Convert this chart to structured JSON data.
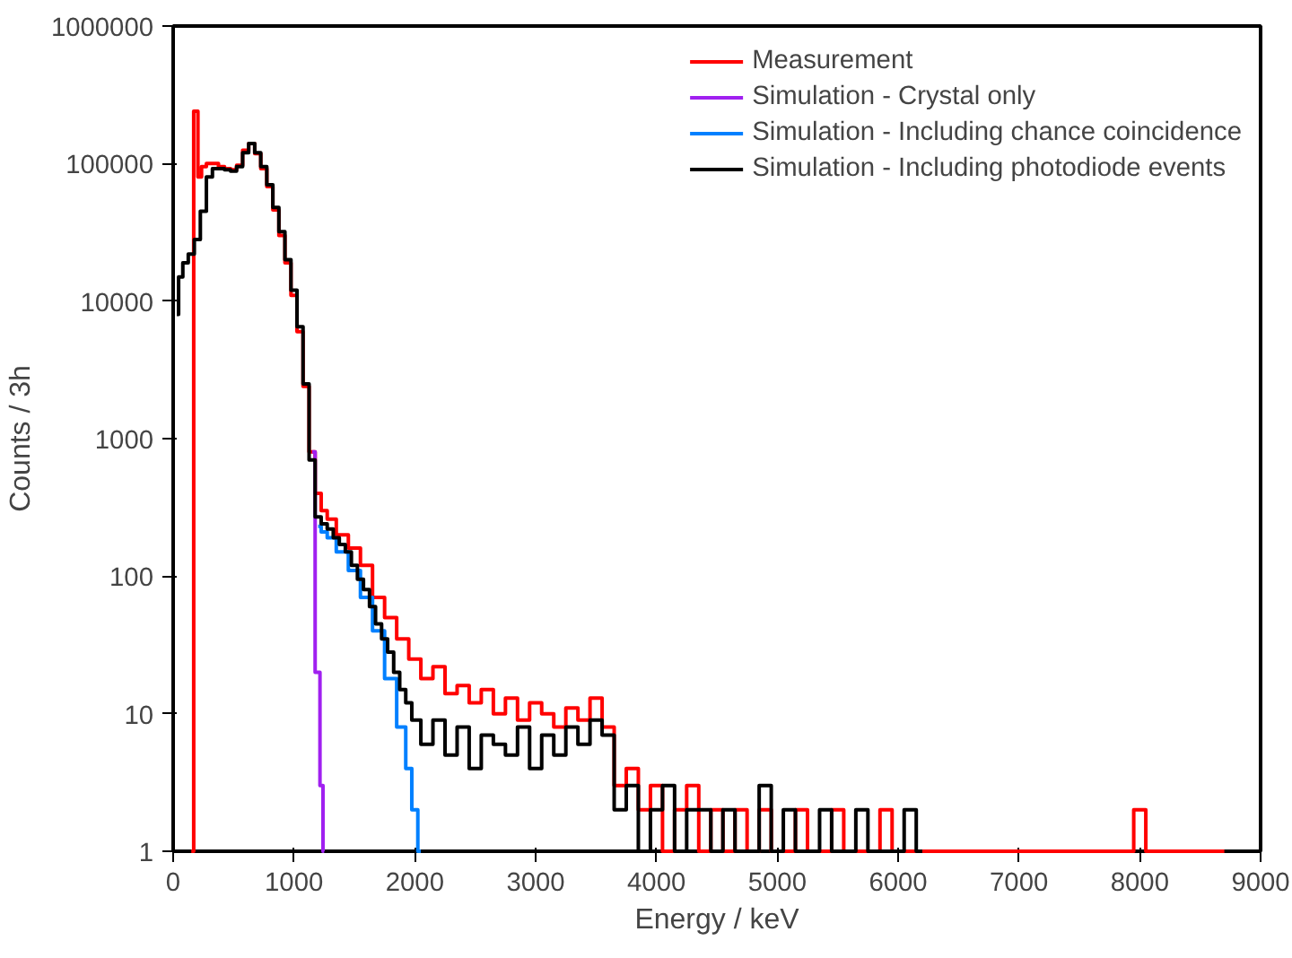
{
  "chart_data": {
    "type": "step",
    "xlabel": "Energy / keV",
    "ylabel": "Counts / 3h",
    "log": "y",
    "grid": false,
    "legend": "top right",
    "xlim": [
      0,
      9000
    ],
    "xticks": [
      0,
      1000,
      2000,
      3000,
      4000,
      5000,
      6000,
      7000,
      8000,
      9000
    ],
    "ylim": [
      1,
      1000000
    ],
    "yticks": [
      1,
      10,
      100,
      1000,
      10000,
      100000,
      1000000
    ],
    "series": [
      {
        "name": "Measurement",
        "color": "#ff0000",
        "x": [
          150,
          190,
          220,
          250,
          300,
          350,
          400,
          450,
          500,
          550,
          600,
          650,
          700,
          750,
          800,
          850,
          900,
          950,
          1000,
          1050,
          1100,
          1150,
          1200,
          1250,
          1300,
          1400,
          1500,
          1600,
          1700,
          1800,
          1900,
          2000,
          2100,
          2200,
          2300,
          2400,
          2500,
          2600,
          2700,
          2800,
          2900,
          3000,
          3100,
          3200,
          3300,
          3400,
          3500,
          3600,
          3700,
          3800,
          3900,
          4000,
          4100,
          4200,
          4300,
          4400,
          4500,
          4600,
          4700,
          4800,
          4900,
          5000,
          5100,
          5200,
          5300,
          5400,
          5500,
          5600,
          5700,
          5800,
          5900,
          6000,
          6100,
          6200,
          6300,
          6400,
          6500,
          6600,
          6700,
          6800,
          6900,
          7000,
          7100,
          7200,
          7300,
          7400,
          7500,
          7600,
          7700,
          7800,
          7900,
          8000,
          8100,
          8200,
          8300,
          8400,
          8500,
          8600,
          8700
        ],
        "values": [
          1,
          240000,
          80000,
          95000,
          100000,
          100000,
          95000,
          92000,
          90000,
          97000,
          125000,
          140000,
          118000,
          92000,
          68000,
          46000,
          30000,
          19000,
          11000,
          6000,
          2400,
          800,
          400,
          300,
          260,
          200,
          160,
          120,
          70,
          50,
          35,
          25,
          18,
          22,
          14,
          16,
          12,
          15,
          10,
          13,
          9,
          12,
          10,
          8,
          11,
          9,
          13,
          8,
          3,
          4,
          2,
          3,
          1,
          2,
          3,
          1,
          2,
          1,
          2,
          1,
          2,
          1,
          1,
          2,
          1,
          1,
          2,
          1,
          1,
          1,
          2,
          1,
          1,
          1,
          1,
          1,
          1,
          1,
          1,
          1,
          1,
          1,
          1,
          1,
          1,
          1,
          1,
          1,
          1,
          1,
          1,
          2,
          1,
          1,
          1,
          1,
          1,
          1,
          1
        ]
      },
      {
        "name": "Simulation - Crystal only",
        "color": "#a020f0",
        "x": [
          1150,
          1200,
          1230,
          1250
        ],
        "values": [
          800,
          20,
          3,
          1
        ]
      },
      {
        "name": "Simulation - Including chance coincidence",
        "color": "#0080ff",
        "x": [
          1200,
          1250,
          1300,
          1400,
          1500,
          1600,
          1700,
          1800,
          1900,
          1950,
          2000,
          2050
        ],
        "values": [
          230,
          210,
          190,
          150,
          110,
          70,
          40,
          18,
          8,
          4,
          2,
          1
        ]
      },
      {
        "name": "Simulation - Including photodiode events",
        "color": "#000000",
        "x": [
          30,
          60,
          100,
          150,
          200,
          250,
          300,
          350,
          400,
          450,
          500,
          550,
          600,
          650,
          700,
          750,
          800,
          850,
          900,
          950,
          1000,
          1050,
          1100,
          1150,
          1200,
          1250,
          1300,
          1350,
          1400,
          1450,
          1500,
          1550,
          1600,
          1650,
          1700,
          1750,
          1800,
          1850,
          1900,
          1950,
          2000,
          2100,
          2200,
          2300,
          2400,
          2500,
          2600,
          2700,
          2800,
          2900,
          3000,
          3100,
          3200,
          3300,
          3400,
          3500,
          3600,
          3700,
          3800,
          3900,
          4000,
          4100,
          4200,
          4300,
          4400,
          4500,
          4600,
          4700,
          4800,
          4900,
          5000,
          5100,
          5200,
          5300,
          5400,
          5500,
          5600,
          5700,
          5800,
          5900,
          6000,
          6100,
          6200
        ],
        "values": [
          8000,
          15000,
          19000,
          22000,
          28000,
          45000,
          80000,
          92000,
          92000,
          90000,
          88000,
          95000,
          120000,
          140000,
          120000,
          95000,
          70000,
          48000,
          32000,
          20000,
          12000,
          6500,
          2500,
          700,
          270,
          240,
          220,
          190,
          170,
          150,
          120,
          95,
          80,
          60,
          45,
          35,
          28,
          20,
          15,
          12,
          9,
          6,
          9,
          5,
          8,
          4,
          7,
          6,
          5,
          8,
          4,
          7,
          5,
          8,
          6,
          9,
          7,
          2,
          3,
          1,
          2,
          3,
          1,
          2,
          2,
          1,
          2,
          1,
          1,
          3,
          1,
          2,
          1,
          1,
          2,
          1,
          1,
          2,
          1,
          1,
          1,
          2,
          1
        ]
      }
    ]
  }
}
